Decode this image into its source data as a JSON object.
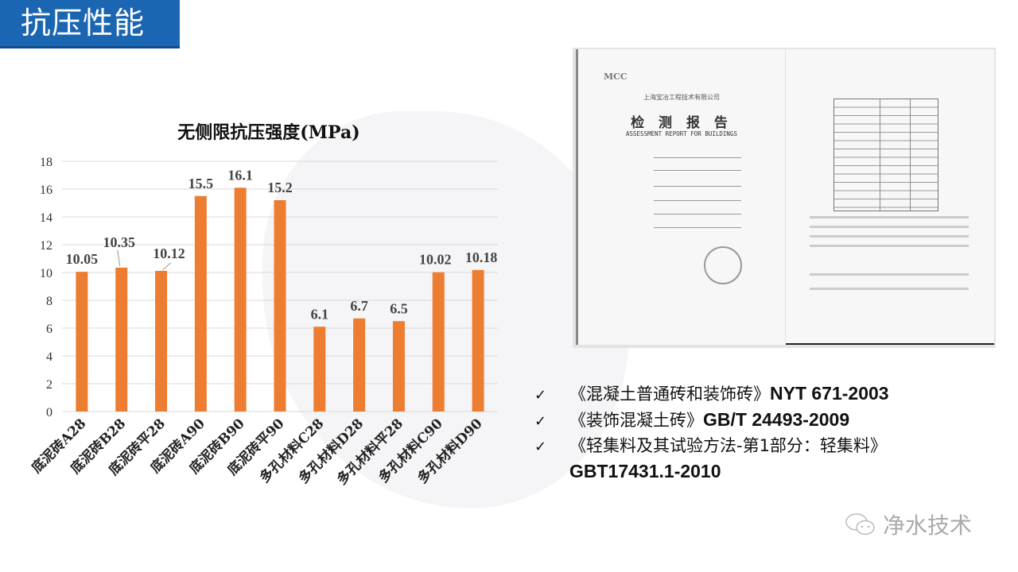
{
  "header": {
    "title": "抗压性能"
  },
  "chart_data": {
    "type": "bar",
    "title": "无侧限抗压强度(MPa)",
    "categories": [
      "底泥砖A28",
      "底泥砖B28",
      "底泥砖平28",
      "底泥砖A90",
      "底泥砖B90",
      "底泥砖平90",
      "多孔材料C28",
      "多孔材料D28",
      "多孔材料平28",
      "多孔材料C90",
      "多孔材料D90"
    ],
    "values": [
      10.05,
      10.35,
      10.12,
      15.5,
      16.1,
      15.2,
      6.1,
      6.7,
      6.5,
      10.02,
      10.18
    ],
    "data_labels": [
      "10.05",
      "10.35",
      "10.12",
      "15.5",
      "16.1",
      "15.2",
      "6.1",
      "6.7",
      "6.5",
      "10.02",
      "10.18"
    ],
    "yticks": [
      "0",
      "2",
      "4",
      "6",
      "8",
      "10",
      "12",
      "14",
      "16",
      "18"
    ],
    "ylim": [
      0,
      18
    ],
    "grid": true,
    "bar_color": "#ed7d31",
    "xlabel": "",
    "ylabel": ""
  },
  "report": {
    "logo": "MCC",
    "company": "上海宝冶工程技术有限公司",
    "title_cn": "检 测 报 告",
    "title_en": "ASSESSMENT REPORT FOR BUILDINGS"
  },
  "references": [
    {
      "name": "《混凝土普通砖和装饰砖》",
      "code": "NYT 671-2003"
    },
    {
      "name": "《装饰混凝土砖》",
      "code": "GB/T 24493-2009"
    },
    {
      "name": "《轻集料及其试验方法-第1部分：轻集料》",
      "code": "GBT17431.1-2010"
    }
  ],
  "check_icon": "✓",
  "watermark": "净水技术"
}
